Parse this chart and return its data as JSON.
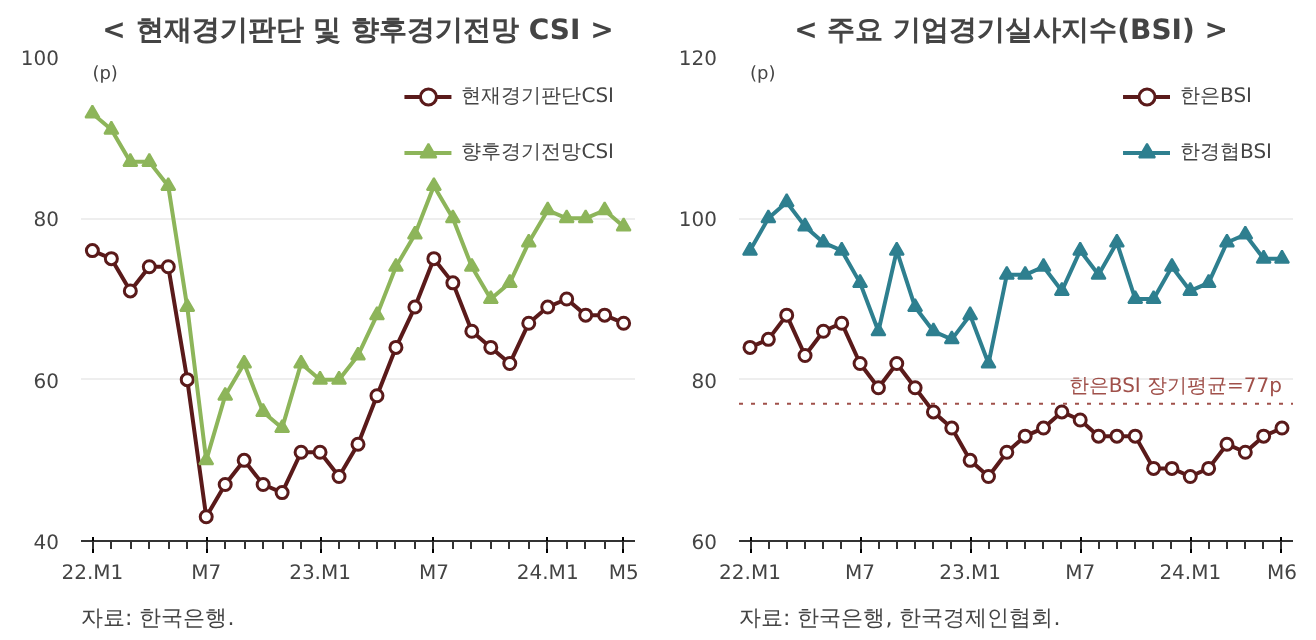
{
  "chart_data": [
    {
      "type": "line",
      "title": "< 현재경기판단 및 향후경기전망 CSI >",
      "ylabel": "(p)",
      "categories": [
        "22.M1",
        null,
        null,
        null,
        null,
        null,
        "M7",
        null,
        null,
        null,
        null,
        null,
        "23.M1",
        null,
        null,
        null,
        null,
        null,
        "M7",
        null,
        null,
        null,
        null,
        null,
        "24.M1",
        null,
        null,
        null,
        "M5"
      ],
      "series": [
        {
          "name": "현재경기판단CSI",
          "color": "#5a1a1a",
          "marker": "circle",
          "values": [
            76,
            75,
            71,
            74,
            74,
            60,
            43,
            47,
            50,
            47,
            46,
            51,
            51,
            48,
            52,
            58,
            64,
            69,
            75,
            72,
            66,
            64,
            62,
            67,
            69,
            70,
            68,
            68,
            67
          ]
        },
        {
          "name": "향후경기전망CSI",
          "color": "#8db55a",
          "marker": "triangle",
          "values": [
            93,
            91,
            87,
            87,
            84,
            69,
            50,
            58,
            62,
            56,
            54,
            62,
            60,
            60,
            63,
            68,
            74,
            78,
            84,
            80,
            74,
            70,
            72,
            77,
            81,
            80,
            80,
            81,
            79
          ]
        }
      ],
      "ylim": [
        40,
        100
      ],
      "yticks": [
        40,
        60,
        80,
        100
      ],
      "grid": "y",
      "legend": "top right",
      "annotations": [
        "자료: 한국은행."
      ]
    },
    {
      "type": "line",
      "title": "< 주요  기업경기실사지수(BSI) >",
      "ylabel": "(p)",
      "categories": [
        "22.M1",
        null,
        null,
        null,
        null,
        null,
        "M7",
        null,
        null,
        null,
        null,
        null,
        "23.M1",
        null,
        null,
        null,
        null,
        null,
        "M7",
        null,
        null,
        null,
        null,
        null,
        "24.M1",
        null,
        null,
        null,
        null,
        "M6"
      ],
      "series": [
        {
          "name": "한은BSI",
          "color": "#5a1a1a",
          "marker": "circle",
          "values": [
            84,
            85,
            88,
            83,
            86,
            87,
            82,
            79,
            82,
            79,
            76,
            74,
            70,
            68,
            71,
            73,
            74,
            76,
            75,
            73,
            73,
            73,
            69,
            69,
            68,
            69,
            72,
            71,
            73,
            74
          ]
        },
        {
          "name": "한경협BSI",
          "color": "#2e7f8f",
          "marker": "triangle",
          "values": [
            96,
            100,
            102,
            99,
            97,
            96,
            92,
            86,
            96,
            89,
            86,
            85,
            88,
            82,
            93,
            93,
            94,
            91,
            96,
            93,
            97,
            90,
            90,
            94,
            91,
            92,
            97,
            98,
            95,
            95
          ]
        }
      ],
      "ylim": [
        60,
        120
      ],
      "yticks": [
        60,
        80,
        100,
        120
      ],
      "grid": "y",
      "legend": "top right",
      "ref_lines": [
        {
          "axis": "y",
          "value": 77,
          "label": "한은BSI 장기평균=77p",
          "color": "#a0504a",
          "line_style": "dotted"
        }
      ],
      "annotations": [
        "자료: 한국은행, 한국경제인협회."
      ]
    }
  ]
}
